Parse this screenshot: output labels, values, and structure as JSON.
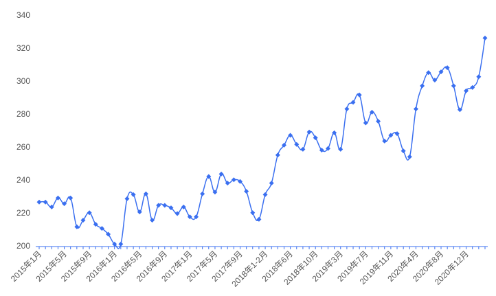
{
  "chart_data": {
    "type": "line",
    "categories": [
      "2015年1月",
      null,
      null,
      null,
      "2015年5月",
      null,
      null,
      null,
      "2015年9月",
      null,
      null,
      null,
      "2016年1月",
      null,
      null,
      null,
      "2016年5月",
      null,
      null,
      null,
      "2016年9月",
      null,
      null,
      null,
      "2017年1月",
      null,
      null,
      null,
      "2017年5月",
      null,
      null,
      null,
      "2017年9月",
      null,
      null,
      null,
      "2018年1-2月",
      null,
      null,
      null,
      "2018年6月",
      null,
      null,
      null,
      "2018年10月",
      null,
      null,
      null,
      "2019年3月",
      null,
      null,
      null,
      "2019年7月",
      null,
      null,
      null,
      "2019年11月",
      null,
      null,
      null,
      "2020年4月",
      null,
      null,
      null,
      "2020年8月",
      null,
      null,
      null,
      "2020年12月",
      null,
      null,
      null
    ],
    "values": [
      227,
      227,
      224,
      229.5,
      226,
      229.5,
      212,
      216,
      220.5,
      213.5,
      211,
      207.5,
      201.5,
      201.5,
      229,
      231.5,
      221,
      232,
      216,
      225,
      225,
      223.5,
      220,
      224,
      218,
      218,
      232,
      242.5,
      233,
      244,
      238.5,
      240.5,
      239.5,
      233.5,
      220.5,
      216.5,
      231.5,
      238.5,
      255.5,
      261.5,
      267.5,
      262,
      259,
      269.5,
      266,
      258.5,
      259.5,
      269,
      259,
      283.5,
      287.5,
      292,
      275,
      281.5,
      276,
      264,
      267.5,
      268.5,
      258,
      254.5,
      283.5,
      297.5,
      305.5,
      301,
      306,
      308.5,
      297.5,
      283,
      294.5,
      296.5,
      303,
      326.5
    ],
    "color": "#3a6ff0",
    "ylim": [
      200,
      340
    ],
    "yticks": [
      200,
      220,
      240,
      260,
      280,
      300,
      320,
      340
    ],
    "grid": false
  }
}
